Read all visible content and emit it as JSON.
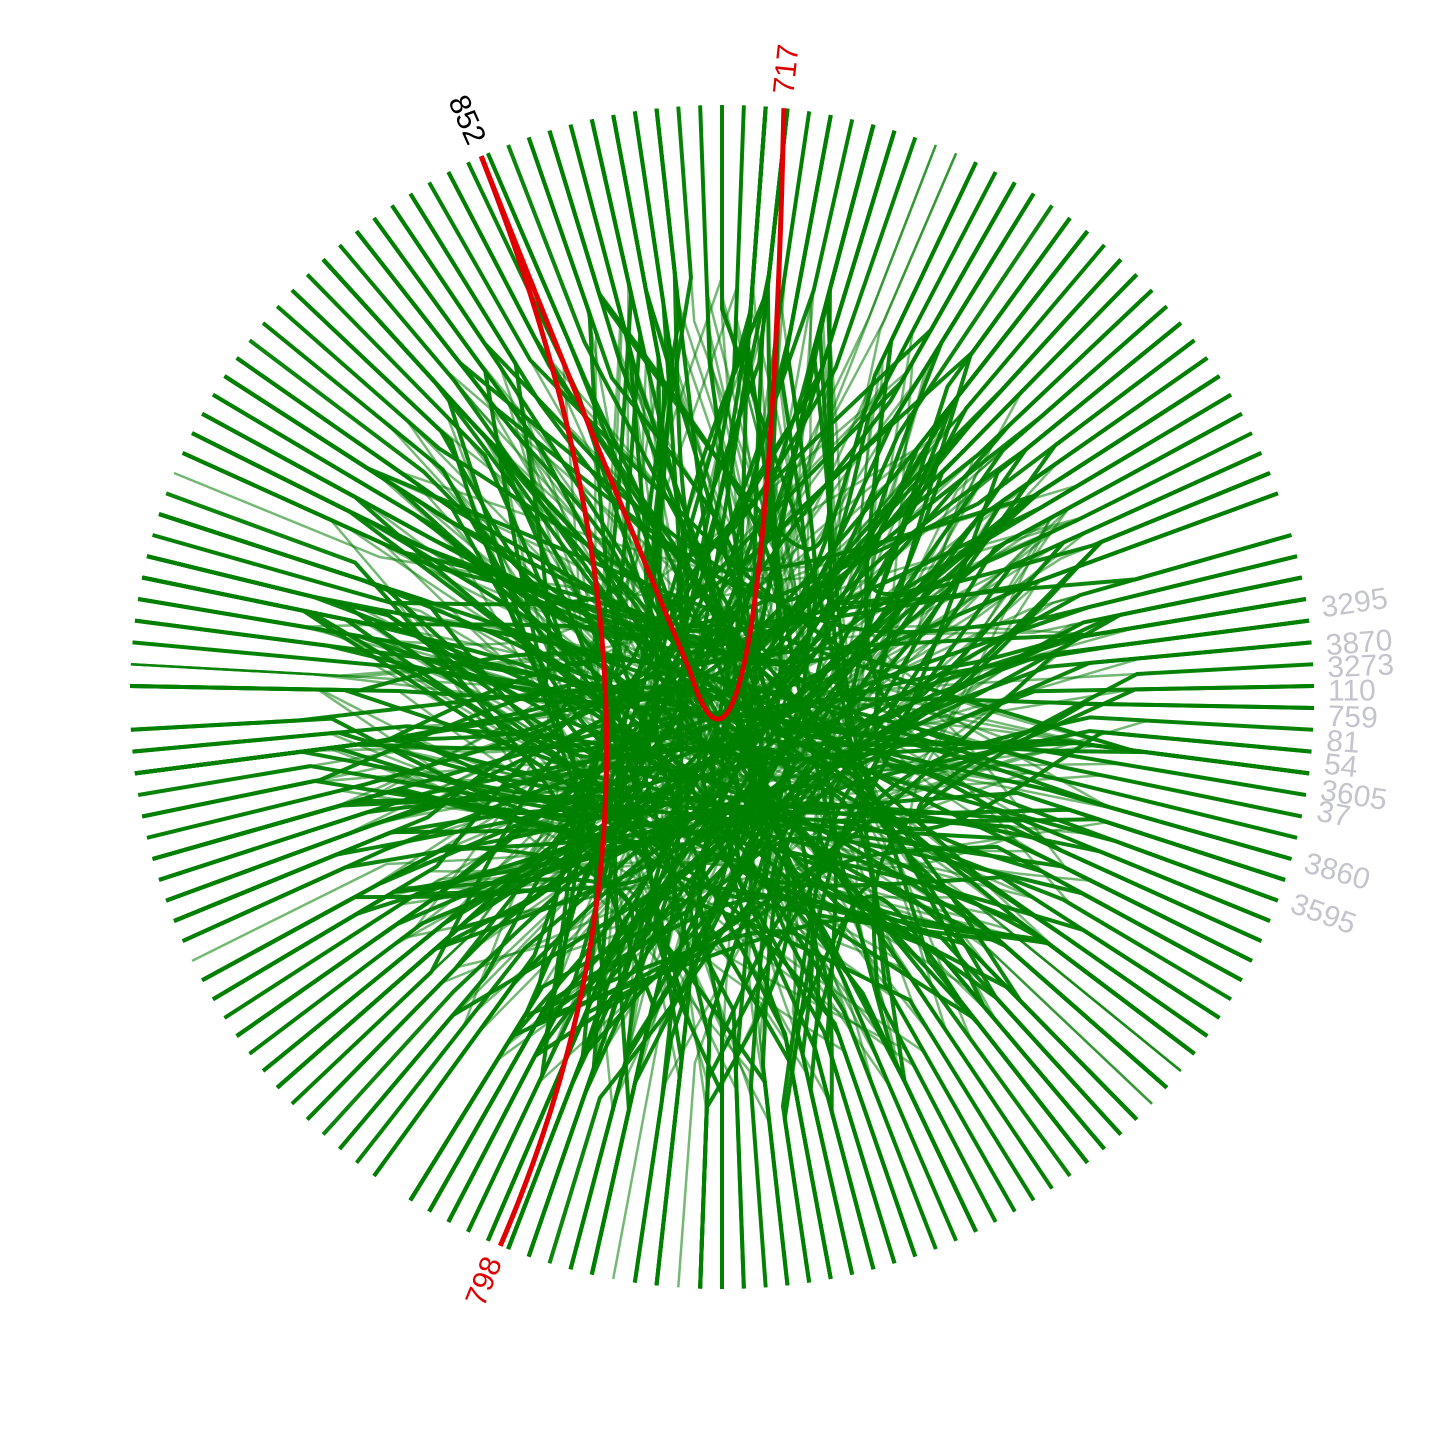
{
  "diagram": {
    "nodes": {
      "selected": "852",
      "linked": [
        "717",
        "798"
      ],
      "others": [
        "3295",
        "3870",
        "3273",
        "110",
        "759",
        "81",
        "54",
        "3605",
        "37",
        "3860",
        "3595"
      ]
    }
  }
}
